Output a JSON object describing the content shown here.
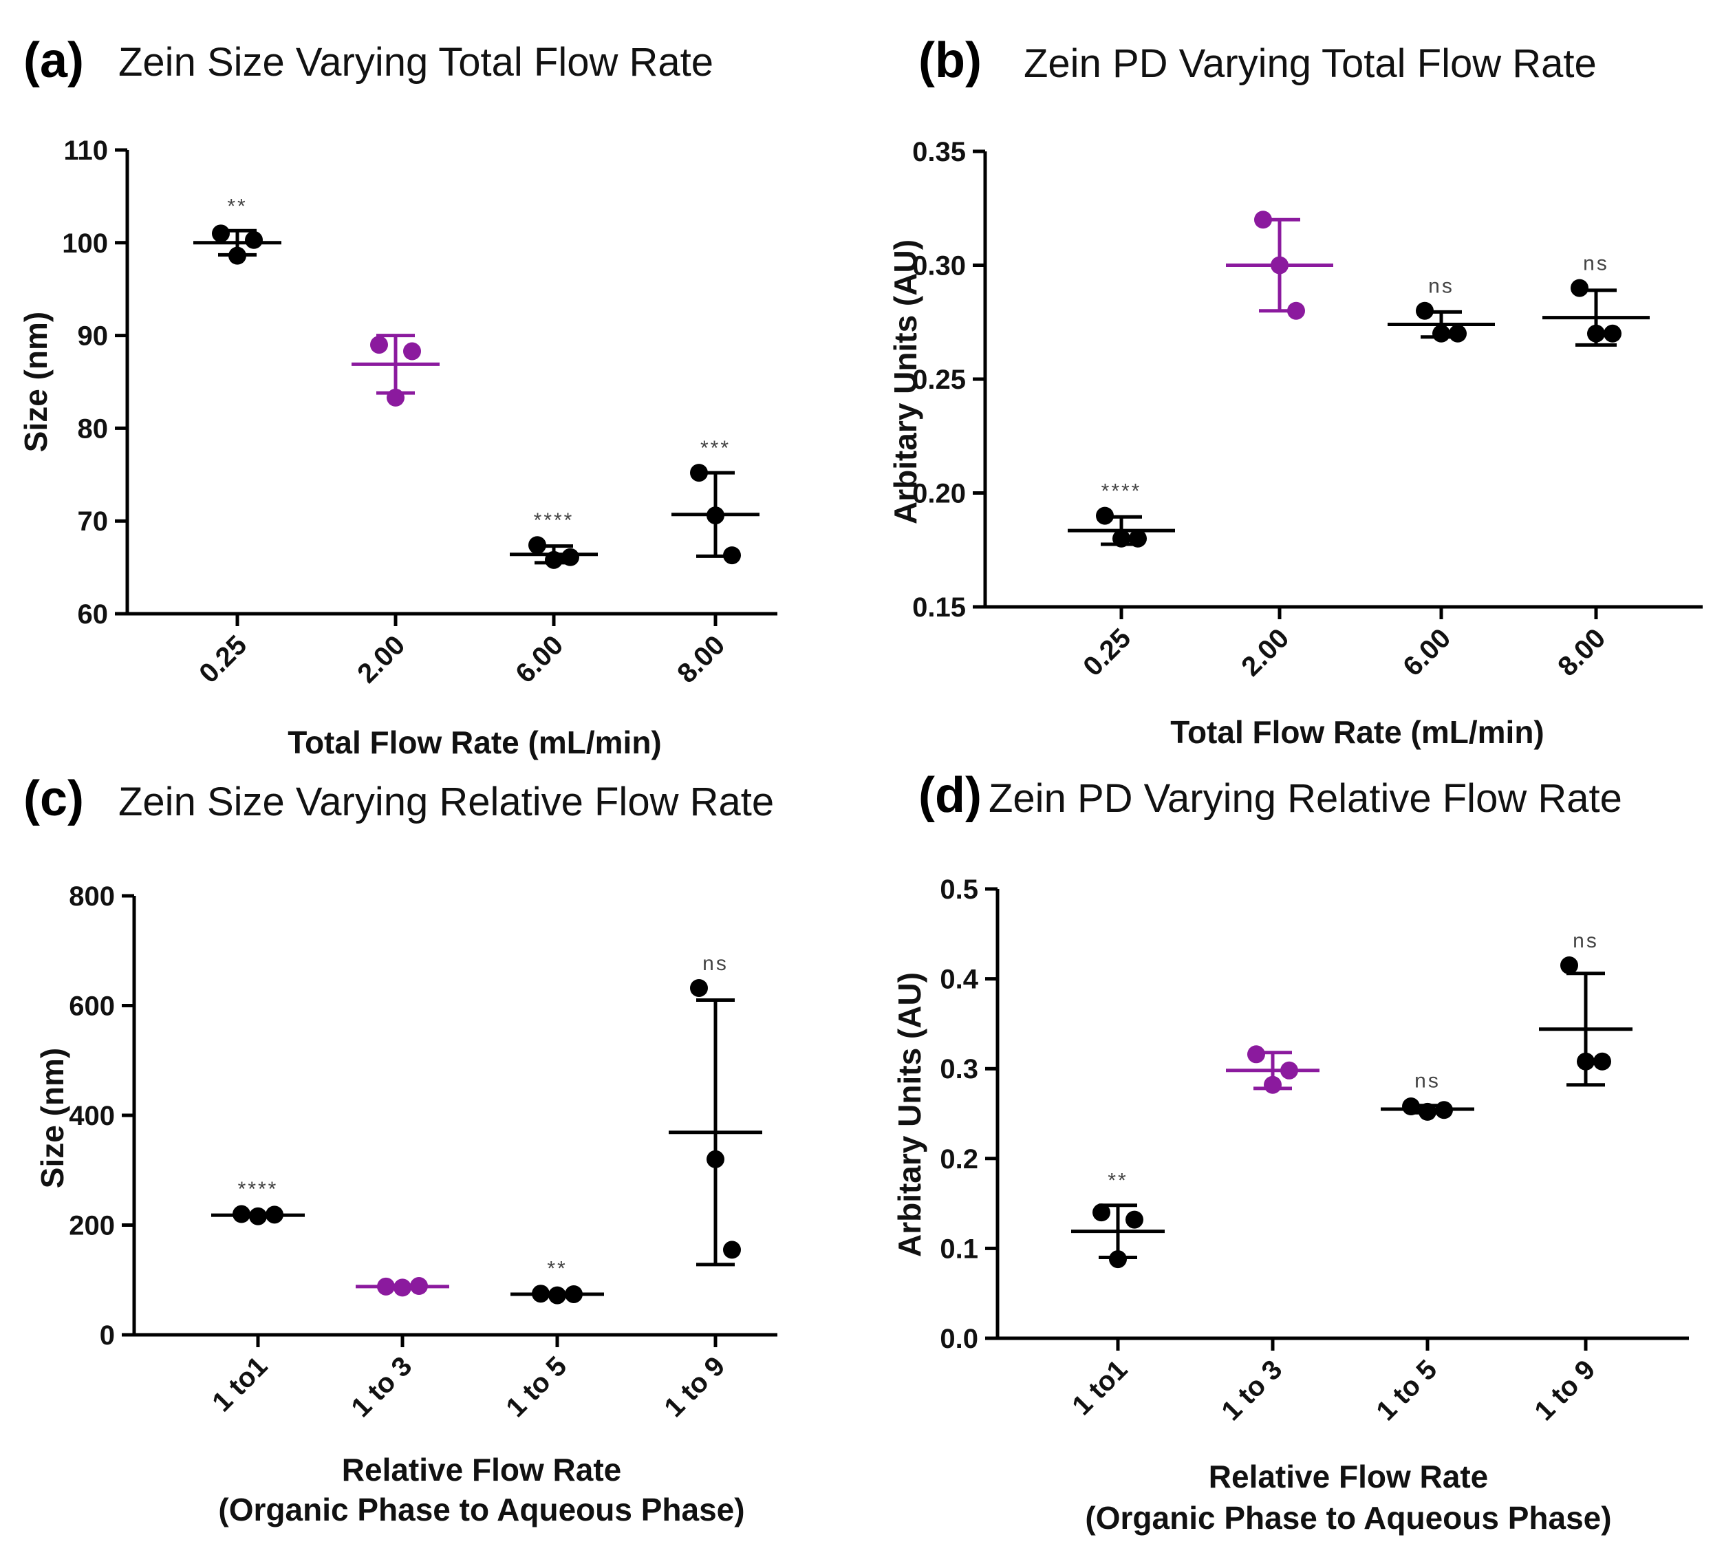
{
  "figure": {
    "colors": {
      "control": "#000000",
      "reference": "#8B1A9E"
    }
  },
  "chart_data": [
    {
      "type": "scatter",
      "panel": "(a)",
      "title": "Zein Size Varying Total Flow Rate",
      "xlabel": "Total Flow Rate (mL/min)",
      "xlabel_lines": [
        "Total Flow Rate (mL/min)"
      ],
      "ylabel": "Size (nm)",
      "ylim": [
        60,
        110
      ],
      "yticks": [
        60,
        70,
        80,
        90,
        100,
        110
      ],
      "ytick_labels": [
        "60",
        "70",
        "80",
        "90",
        "100",
        "110"
      ],
      "categories": [
        "0.25",
        "2.00",
        "6.00",
        "8.00"
      ],
      "groups": [
        {
          "category": "0.25",
          "points": [
            101,
            98.6,
            100.3
          ],
          "mean": 100.0,
          "sd": 1.3,
          "significance": "**",
          "color": "#000000"
        },
        {
          "category": "2.00",
          "points": [
            89.0,
            83.3,
            88.3
          ],
          "mean": 86.9,
          "sd": 3.1,
          "significance": "",
          "color": "#8B1A9E"
        },
        {
          "category": "6.00",
          "points": [
            67.4,
            65.8,
            66.1
          ],
          "mean": 66.4,
          "sd": 0.9,
          "significance": "****",
          "color": "#000000"
        },
        {
          "category": "8.00",
          "points": [
            75.2,
            70.6,
            66.3
          ],
          "mean": 70.7,
          "sd": 4.5,
          "significance": "***",
          "color": "#000000"
        }
      ]
    },
    {
      "type": "scatter",
      "panel": "(b)",
      "title": "Zein PD Varying Total Flow Rate",
      "xlabel": "Total Flow Rate (mL/min)",
      "xlabel_lines": [
        "Total Flow Rate (mL/min)"
      ],
      "ylabel": "Arbitary Units (AU)",
      "ylim": [
        0.15,
        0.35
      ],
      "yticks": [
        0.15,
        0.2,
        0.25,
        0.3,
        0.35
      ],
      "ytick_labels": [
        "0.15",
        "0.20",
        "0.25",
        "0.30",
        "0.35"
      ],
      "categories": [
        "0.25",
        "2.00",
        "6.00",
        "8.00"
      ],
      "groups": [
        {
          "category": "0.25",
          "points": [
            0.19,
            0.18,
            0.18
          ],
          "mean": 0.1835,
          "sd": 0.006,
          "significance": "****",
          "color": "#000000"
        },
        {
          "category": "2.00",
          "points": [
            0.32,
            0.3,
            0.28
          ],
          "mean": 0.3,
          "sd": 0.02,
          "significance": "",
          "color": "#8B1A9E"
        },
        {
          "category": "6.00",
          "points": [
            0.28,
            0.27,
            0.27
          ],
          "mean": 0.274,
          "sd": 0.0055,
          "significance": "ns",
          "color": "#000000"
        },
        {
          "category": "8.00",
          "points": [
            0.29,
            0.27,
            0.27
          ],
          "mean": 0.277,
          "sd": 0.012,
          "significance": "ns",
          "color": "#000000"
        }
      ]
    },
    {
      "type": "scatter",
      "panel": "(c)",
      "title": "Zein Size Varying Relative Flow Rate",
      "xlabel": "Relative Flow Rate (Organic Phase to Aqueous Phase)",
      "xlabel_lines": [
        "Relative Flow Rate",
        "(Organic Phase to Aqueous Phase)"
      ],
      "ylabel": "Size (nm)",
      "ylim": [
        0,
        800
      ],
      "yticks": [
        0,
        200,
        400,
        600,
        800
      ],
      "ytick_labels": [
        "0",
        "200",
        "400",
        "600",
        "800"
      ],
      "categories": [
        "1 to1",
        "1 to 3",
        "1 to 5",
        "1 to 9"
      ],
      "groups": [
        {
          "category": "1 to1",
          "points": [
            220,
            216,
            219
          ],
          "mean": 218,
          "sd": 3,
          "significance": "****",
          "color": "#000000"
        },
        {
          "category": "1 to 3",
          "points": [
            88,
            86,
            89
          ],
          "mean": 88,
          "sd": 2,
          "significance": "",
          "color": "#8B1A9E"
        },
        {
          "category": "1 to 5",
          "points": [
            75,
            72,
            74
          ],
          "mean": 74,
          "sd": 2,
          "significance": "**",
          "color": "#000000"
        },
        {
          "category": "1 to 9",
          "points": [
            632,
            320,
            155
          ],
          "mean": 369,
          "sd": 241,
          "significance": "ns",
          "color": "#000000"
        }
      ]
    },
    {
      "type": "scatter",
      "panel": "(d)",
      "title": "Zein PD Varying Relative Flow Rate",
      "xlabel": "Relative Flow Rate (Organic Phase to Aqueous Phase)",
      "xlabel_lines": [
        "Relative Flow Rate",
        "(Organic Phase to Aqueous Phase)"
      ],
      "ylabel": "Arbitary Units (AU)",
      "ylim": [
        0.0,
        0.5
      ],
      "yticks": [
        0.0,
        0.1,
        0.2,
        0.3,
        0.4,
        0.5
      ],
      "ytick_labels": [
        "0.0",
        "0.1",
        "0.2",
        "0.3",
        "0.4",
        "0.5"
      ],
      "categories": [
        "1 to1",
        "1 to 3",
        "1 to 5",
        "1 to 9"
      ],
      "groups": [
        {
          "category": "1 to1",
          "points": [
            0.14,
            0.088,
            0.132
          ],
          "mean": 0.119,
          "sd": 0.029,
          "significance": "**",
          "color": "#000000"
        },
        {
          "category": "1 to 3",
          "points": [
            0.316,
            0.282,
            0.298
          ],
          "mean": 0.298,
          "sd": 0.02,
          "significance": "",
          "color": "#8B1A9E"
        },
        {
          "category": "1 to 5",
          "points": [
            0.258,
            0.252,
            0.254
          ],
          "mean": 0.255,
          "sd": 0.004,
          "significance": "ns",
          "color": "#000000"
        },
        {
          "category": "1 to 9",
          "points": [
            0.415,
            0.308,
            0.308
          ],
          "mean": 0.344,
          "sd": 0.062,
          "significance": "ns",
          "color": "#000000"
        }
      ]
    }
  ]
}
